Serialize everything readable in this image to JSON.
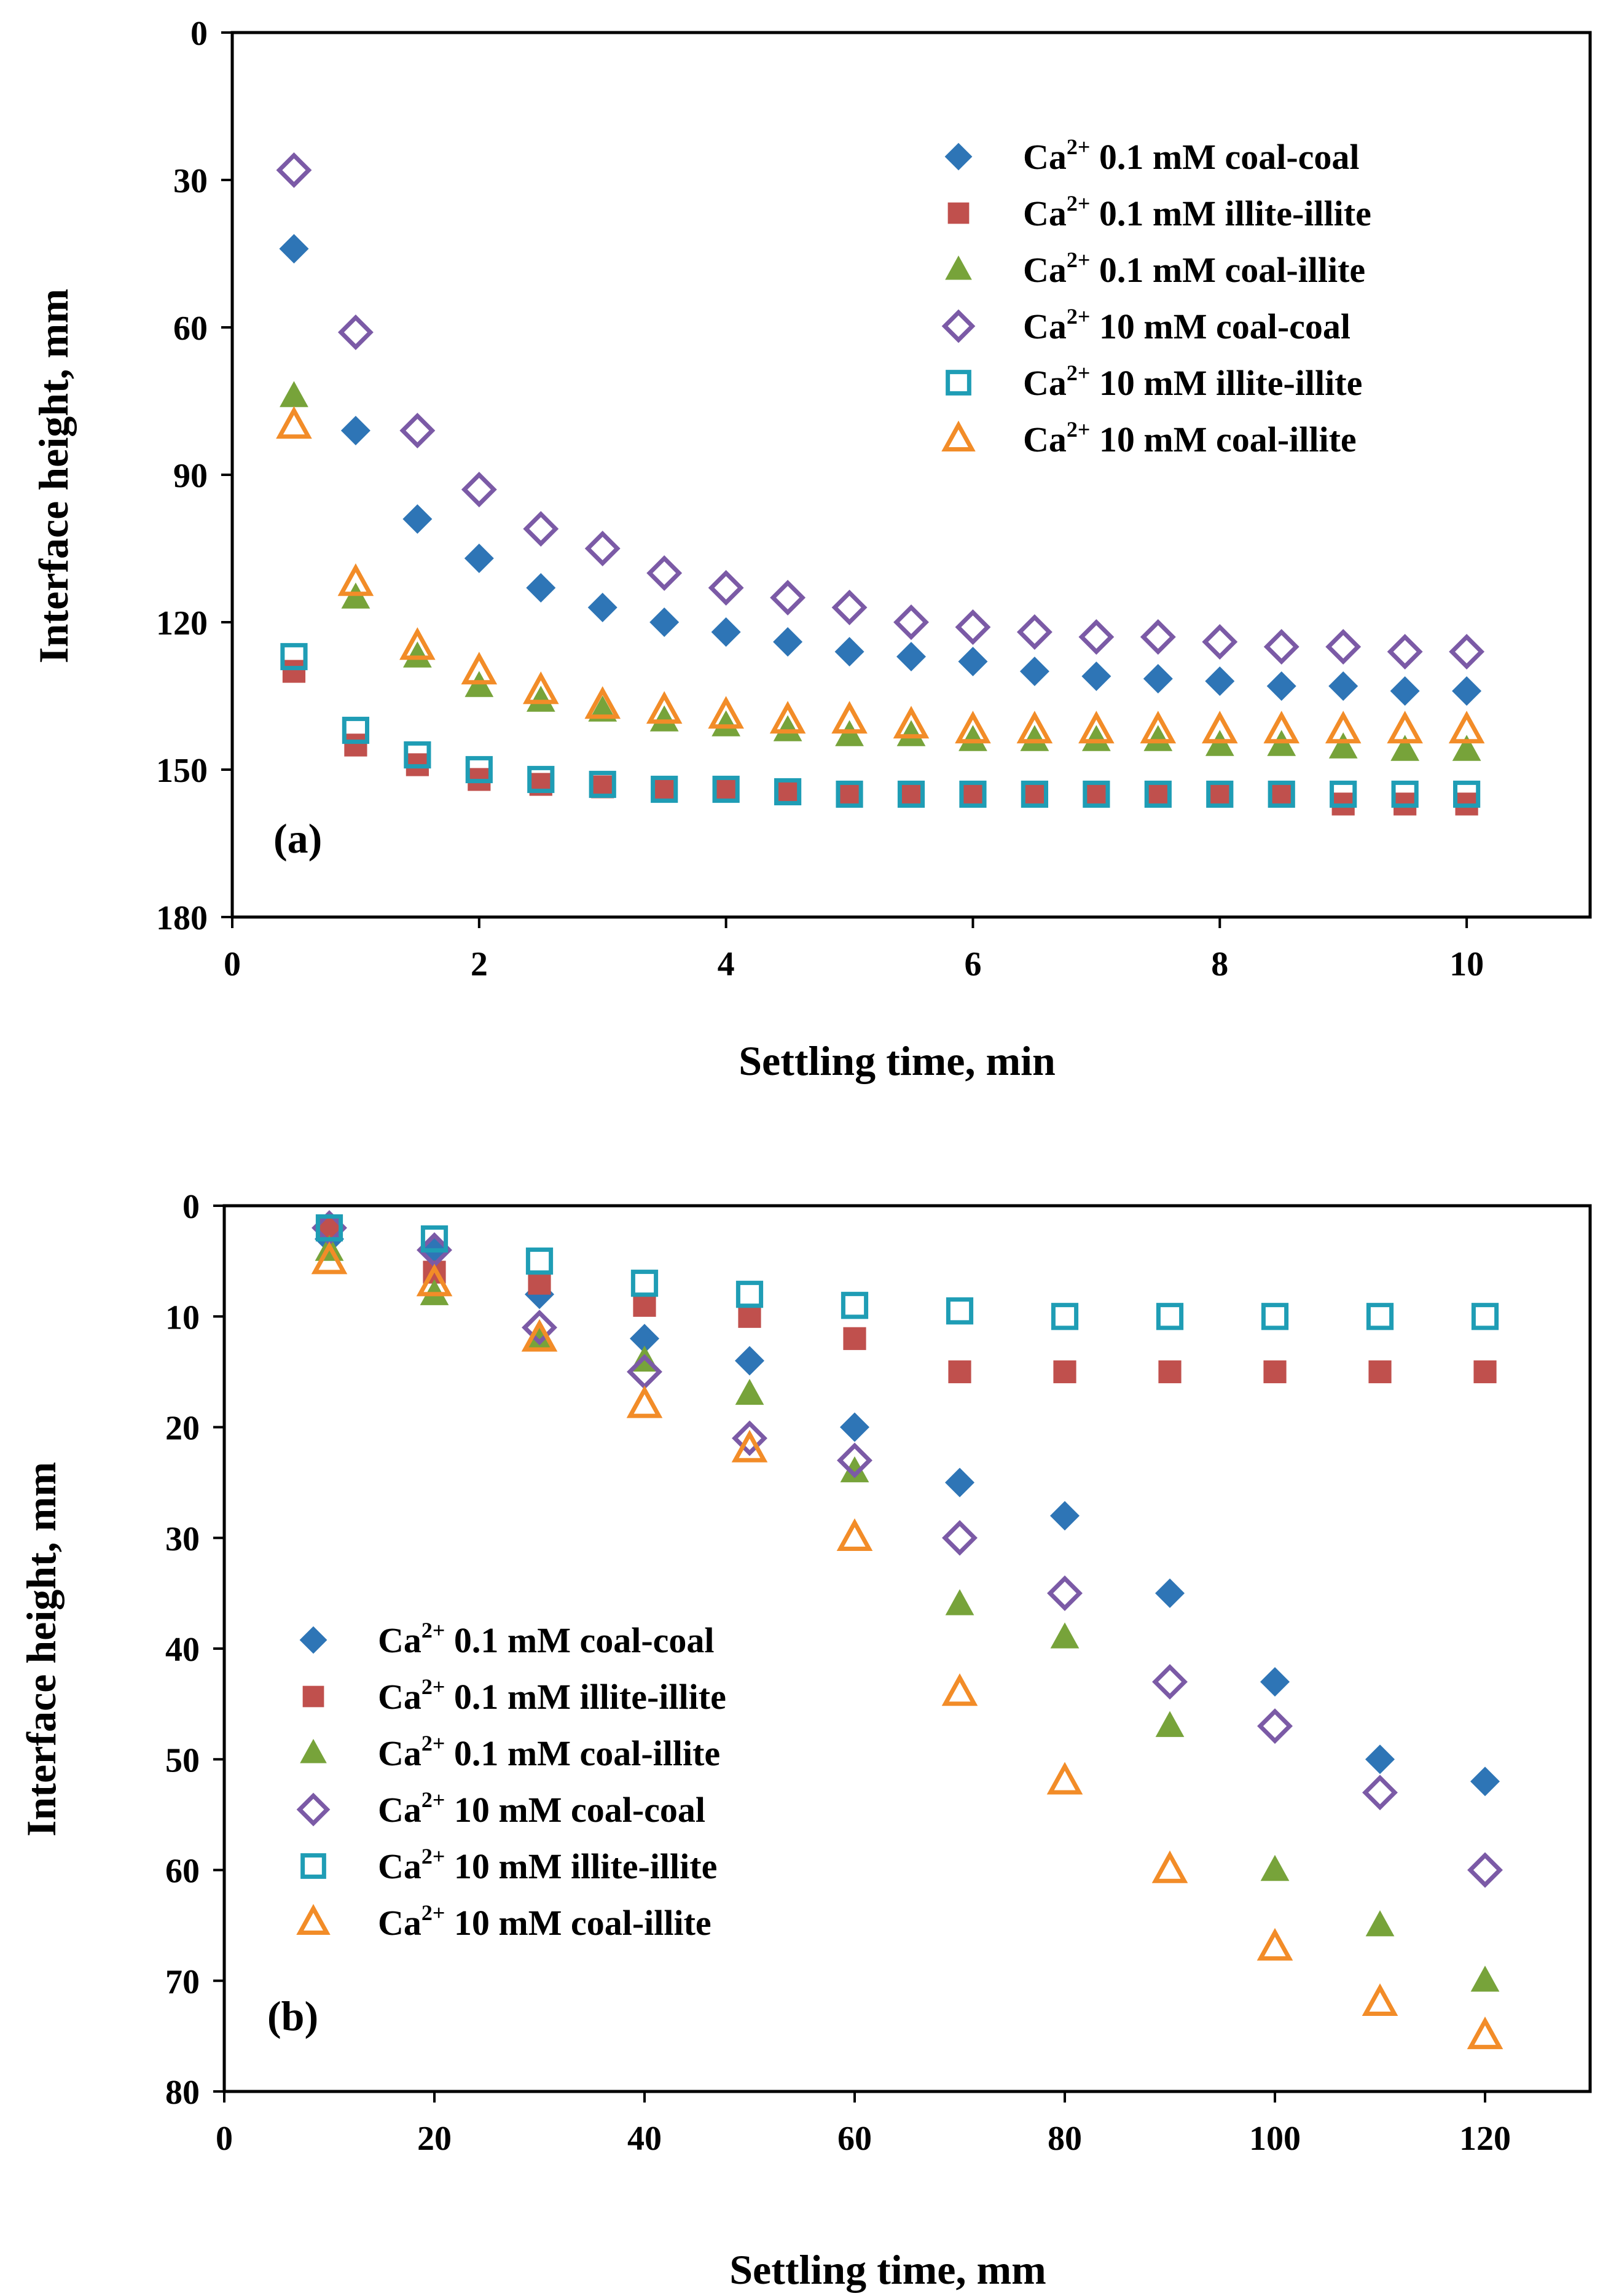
{
  "chart_data": [
    {
      "type": "scatter",
      "panel_label": "(a)",
      "xlabel": "Settling time, min",
      "ylabel": "Interface height, mm",
      "xlim": [
        0,
        11
      ],
      "ylim": [
        0,
        180
      ],
      "y_inverted": true,
      "xticks": [
        "0",
        "2",
        "4",
        "6",
        "8",
        "10"
      ],
      "yticks": [
        "0",
        "30",
        "60",
        "90",
        "120",
        "150",
        "180"
      ],
      "legend_position": "top-right",
      "series": [
        {
          "name": "Ca2+ 0.1 mM coal-coal",
          "ion": "Ca",
          "charge": "2+",
          "rest": " 0.1 mM coal-coal",
          "marker": "diamond",
          "color": "#2E75B6",
          "filled": true,
          "x": [
            0.5,
            1,
            1.5,
            2,
            2.5,
            3,
            3.5,
            4,
            4.5,
            5,
            5.5,
            6,
            6.5,
            7,
            7.5,
            8,
            8.5,
            9,
            9.5,
            10
          ],
          "y": [
            44,
            81,
            99,
            107,
            113,
            117,
            120,
            122,
            124,
            126,
            127,
            128,
            130,
            131,
            131.5,
            132,
            133,
            133,
            134,
            134
          ]
        },
        {
          "name": "Ca2+ 0.1 mM illite-illite",
          "ion": "Ca",
          "charge": "2+",
          "rest": " 0.1 mM illite-illite",
          "marker": "square",
          "color": "#C0504D",
          "filled": true,
          "x": [
            0.5,
            1,
            1.5,
            2,
            2.5,
            3,
            3.5,
            4,
            4.5,
            5,
            5.5,
            6,
            6.5,
            7,
            7.5,
            8,
            8.5,
            9,
            9.5,
            10
          ],
          "y": [
            130,
            145,
            149,
            152,
            153,
            153.5,
            154,
            154,
            154.5,
            155,
            155,
            155,
            155,
            155,
            155,
            155,
            155,
            157,
            157,
            157
          ]
        },
        {
          "name": "Ca2+ 0.1 mM coal-illite",
          "ion": "Ca",
          "charge": "2+",
          "rest": " 0.1 mM coal-illite",
          "marker": "triangle",
          "color": "#77A33A",
          "filled": true,
          "x": [
            0.5,
            1,
            1.5,
            2,
            2.5,
            3,
            3.5,
            4,
            4.5,
            5,
            5.5,
            6,
            6.5,
            7,
            7.5,
            8,
            8.5,
            9,
            9.5,
            10
          ],
          "y": [
            74,
            115,
            127,
            133,
            136,
            138,
            140,
            141,
            142,
            143,
            143,
            144,
            144,
            144,
            144,
            145,
            145,
            145.5,
            146,
            146
          ]
        },
        {
          "name": "Ca2+ 10 mM coal-coal",
          "ion": "Ca",
          "charge": "2+",
          "rest": " 10 mM coal-coal",
          "marker": "diamond",
          "color": "#7B5AA6",
          "filled": false,
          "x": [
            0.5,
            1,
            1.5,
            2,
            2.5,
            3,
            3.5,
            4,
            4.5,
            5,
            5.5,
            6,
            6.5,
            7,
            7.5,
            8,
            8.5,
            9,
            9.5,
            10
          ],
          "y": [
            28,
            61,
            81,
            93,
            101,
            105,
            110,
            113,
            115,
            117,
            120,
            121,
            122,
            123,
            123,
            124,
            125,
            125,
            126,
            126
          ]
        },
        {
          "name": "Ca2+ 10 mM illite-illite",
          "ion": "Ca",
          "charge": "2+",
          "rest": " 10 mM illite-illite",
          "marker": "square",
          "color": "#1F9DB5",
          "filled": false,
          "x": [
            0.5,
            1,
            1.5,
            2,
            2.5,
            3,
            3.5,
            4,
            4.5,
            5,
            5.5,
            6,
            6.5,
            7,
            7.5,
            8,
            8.5,
            9,
            9.5,
            10
          ],
          "y": [
            127,
            142,
            147,
            150,
            152,
            153,
            154,
            154,
            154.5,
            155,
            155,
            155,
            155,
            155,
            155,
            155,
            155,
            155,
            155,
            155
          ]
        },
        {
          "name": "Ca2+ 10 mM coal-illite",
          "ion": "Ca",
          "charge": "2+",
          "rest": " 10 mM coal-illite",
          "marker": "triangle",
          "color": "#F28C28",
          "filled": false,
          "x": [
            0.5,
            1,
            1.5,
            2,
            2.5,
            3,
            3.5,
            4,
            4.5,
            5,
            5.5,
            6,
            6.5,
            7,
            7.5,
            8,
            8.5,
            9,
            9.5,
            10
          ],
          "y": [
            80,
            112,
            125,
            130,
            134,
            137,
            138,
            139,
            140,
            140,
            141,
            142,
            142,
            142,
            142,
            142,
            142,
            142,
            142,
            142
          ]
        }
      ]
    },
    {
      "type": "scatter",
      "panel_label": "(b)",
      "xlabel": "Settling time, mm",
      "ylabel": "Interface height, mm",
      "xlim": [
        0,
        130
      ],
      "ylim": [
        0,
        80
      ],
      "y_inverted": true,
      "xticks": [
        "0",
        "20",
        "40",
        "60",
        "80",
        "100",
        "120"
      ],
      "yticks": [
        "0",
        "10",
        "20",
        "30",
        "40",
        "50",
        "60",
        "70",
        "80"
      ],
      "legend_position": "bottom-left",
      "series": [
        {
          "name": "Ca2+ 0.1 mM coal-coal",
          "ion": "Ca",
          "charge": "2+",
          "rest": " 0.1 mM coal-coal",
          "marker": "diamond",
          "color": "#2E75B6",
          "filled": true,
          "x": [
            10,
            20,
            30,
            40,
            50,
            60,
            70,
            80,
            90,
            100,
            110,
            120
          ],
          "y": [
            3,
            4,
            8,
            12,
            14,
            20,
            25,
            28,
            35,
            43,
            50,
            52
          ]
        },
        {
          "name": "Ca2+ 0.1 mM illite-illite",
          "ion": "Ca",
          "charge": "2+",
          "rest": " 0.1 mM illite-illite",
          "marker": "square",
          "color": "#C0504D",
          "filled": true,
          "x": [
            10,
            20,
            30,
            40,
            50,
            60,
            70,
            80,
            90,
            100,
            110,
            120
          ],
          "y": [
            2,
            6,
            7,
            9,
            10,
            12,
            15,
            15,
            15,
            15,
            15,
            15
          ]
        },
        {
          "name": "Ca2+ 0.1 mM coal-illite",
          "ion": "Ca",
          "charge": "2+",
          "rest": " 0.1 mM coal-illite",
          "marker": "triangle",
          "color": "#77A33A",
          "filled": true,
          "x": [
            10,
            20,
            30,
            40,
            50,
            60,
            70,
            80,
            90,
            100,
            110,
            120
          ],
          "y": [
            4,
            8,
            12,
            14,
            17,
            24,
            36,
            39,
            47,
            60,
            65,
            70
          ]
        },
        {
          "name": "Ca2+ 10 mM coal-coal",
          "ion": "Ca",
          "charge": "2+",
          "rest": " 10 mM coal-coal",
          "marker": "diamond",
          "color": "#7B5AA6",
          "filled": false,
          "x": [
            10,
            20,
            30,
            40,
            50,
            60,
            70,
            80,
            90,
            100,
            110,
            120
          ],
          "y": [
            2,
            4,
            11,
            15,
            21,
            23,
            30,
            35,
            43,
            47,
            53,
            60
          ]
        },
        {
          "name": "Ca2+ 10 mM illite-illite",
          "ion": "Ca",
          "charge": "2+",
          "rest": " 10 mM illite-illite",
          "marker": "square",
          "color": "#1F9DB5",
          "filled": false,
          "x": [
            10,
            20,
            30,
            40,
            50,
            60,
            70,
            80,
            90,
            100,
            110,
            120
          ],
          "y": [
            2,
            3,
            5,
            7,
            8,
            9,
            9.5,
            10,
            10,
            10,
            10,
            10
          ]
        },
        {
          "name": "Ca2+ 10 mM coal-illite",
          "ion": "Ca",
          "charge": "2+",
          "rest": " 10 mM coal-illite",
          "marker": "triangle",
          "color": "#F28C28",
          "filled": false,
          "x": [
            10,
            20,
            30,
            40,
            50,
            60,
            70,
            80,
            90,
            100,
            110,
            120
          ],
          "y": [
            5,
            7,
            12,
            18,
            22,
            30,
            44,
            52,
            60,
            67,
            72,
            75
          ]
        }
      ]
    }
  ]
}
